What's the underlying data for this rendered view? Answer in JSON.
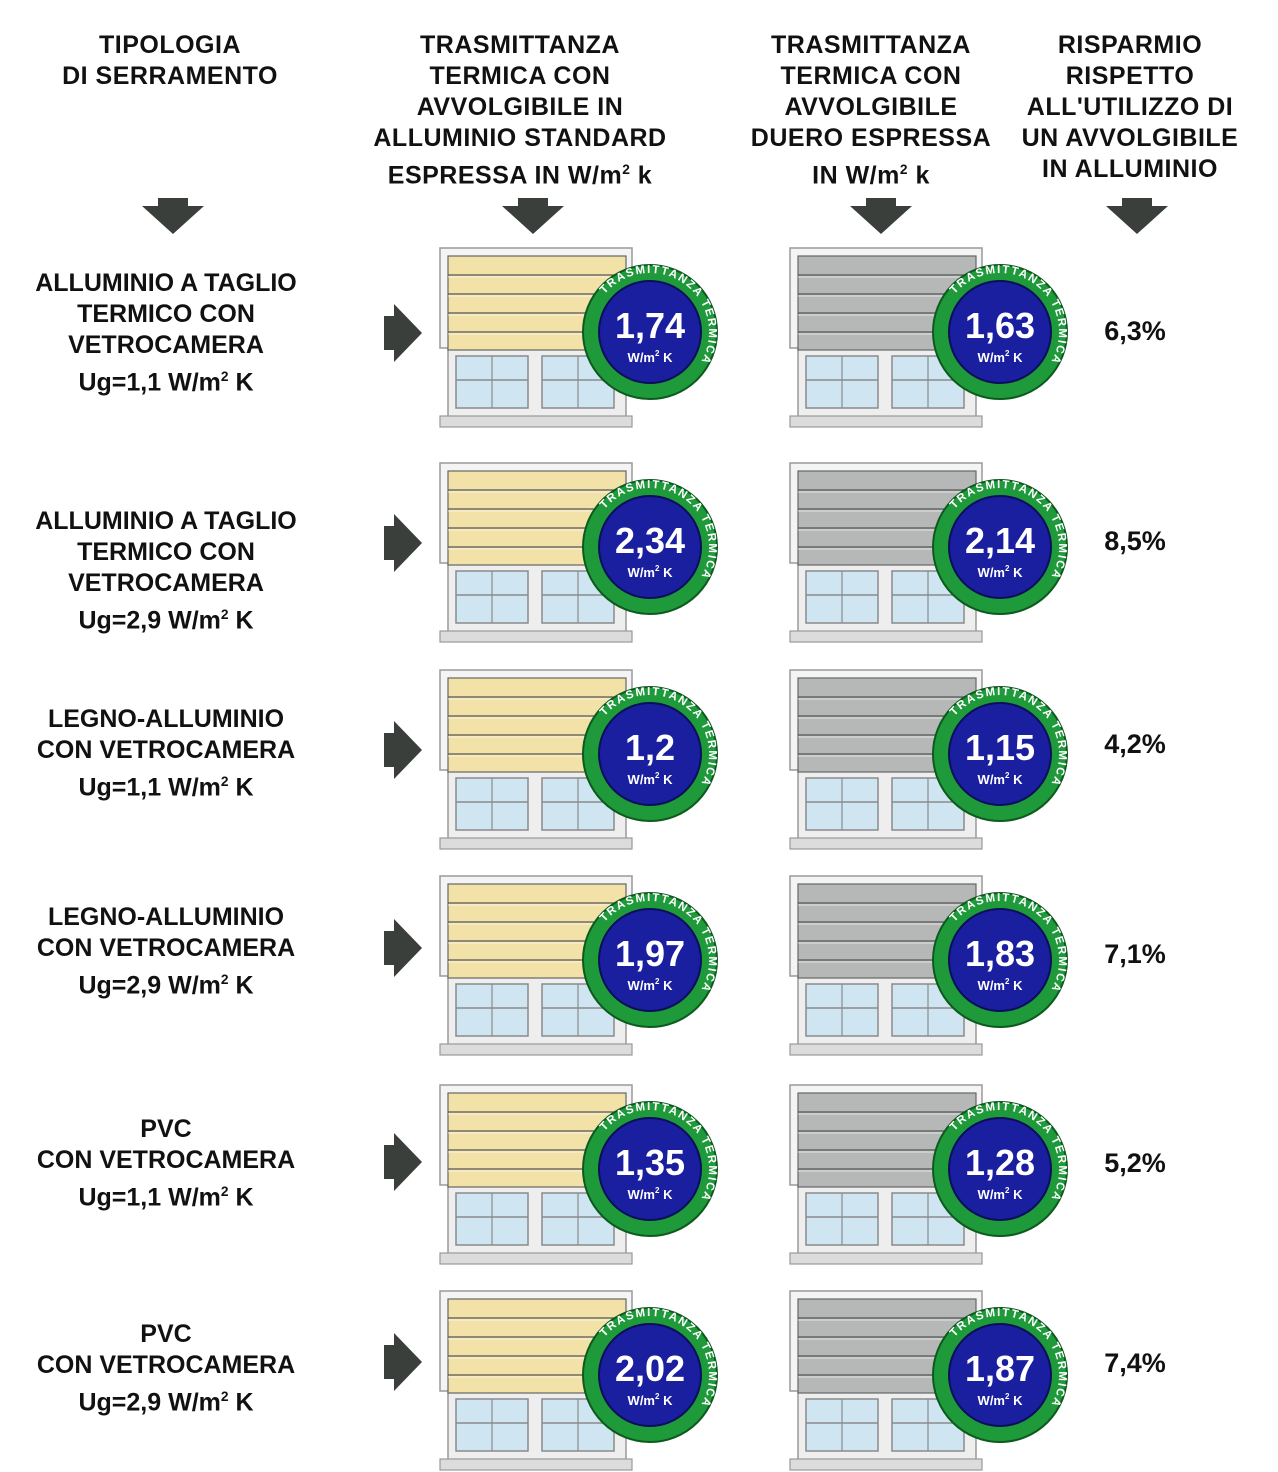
{
  "headers": {
    "col1": [
      "TIPOLOGIA",
      "DI SERRAMENTO"
    ],
    "col2": [
      "TRASMITTANZA",
      "TERMICA CON",
      "AVVOLGIBILE IN",
      "ALLUMINIO STANDARD",
      "ESPRESSA IN W/m² k"
    ],
    "col3": [
      "TRASMITTANZA",
      "TERMICA CON",
      "AVVOLGIBILE",
      "DUERO ESPRESSA",
      "IN W/m² k"
    ],
    "col4": [
      "RISPARMIO",
      "RISPETTO",
      "ALL'UTILIZZO DI",
      "UN AVVOLGIBILE",
      "IN ALLUMINIO"
    ]
  },
  "badge": {
    "ring_text": "TRASMITTANZA TERMICA",
    "unit": "W/m² K"
  },
  "colors": {
    "ring_green": "#1e9a3a",
    "disc_blue": "#1a1fa0",
    "shutter_standard": "#f3e2a8",
    "shutter_duero": "#b5b8b7",
    "arrow": "#3b3f3c",
    "glass": "#cfe6f2"
  },
  "icons": {
    "down": "arrow-down-icon",
    "right": "arrow-right-icon"
  },
  "chart_data": {
    "type": "table",
    "columns": [
      "TIPOLOGIA DI SERRAMENTO",
      "Alluminio standard",
      "Duero",
      "Risparmio"
    ],
    "rows": [
      {
        "label": [
          "ALLUMINIO A TAGLIO",
          "TERMICO CON",
          "VETROCAMERA",
          "Ug=1,1 W/m² K"
        ],
        "standard": "1,74",
        "duero": "1,63",
        "saving": "6,3%"
      },
      {
        "label": [
          "ALLUMINIO A TAGLIO",
          "TERMICO CON",
          "VETROCAMERA",
          "Ug=2,9 W/m² K"
        ],
        "standard": "2,34",
        "duero": "2,14",
        "saving": "8,5%"
      },
      {
        "label": [
          "LEGNO-ALLUMINIO",
          "CON VETROCAMERA",
          "Ug=1,1 W/m² K"
        ],
        "standard": "1,2",
        "duero": "1,15",
        "saving": "4,2%"
      },
      {
        "label": [
          "LEGNO-ALLUMINIO",
          "CON VETROCAMERA",
          "Ug=2,9 W/m² K"
        ],
        "standard": "1,97",
        "duero": "1,83",
        "saving": "7,1%"
      },
      {
        "label": [
          "PVC",
          "CON VETROCAMERA",
          "Ug=1,1 W/m² K"
        ],
        "standard": "1,35",
        "duero": "1,28",
        "saving": "5,2%"
      },
      {
        "label": [
          "PVC",
          "CON VETROCAMERA",
          "Ug=2,9 W/m² K"
        ],
        "standard": "2,02",
        "duero": "1,87",
        "saving": "7,4%"
      }
    ]
  }
}
